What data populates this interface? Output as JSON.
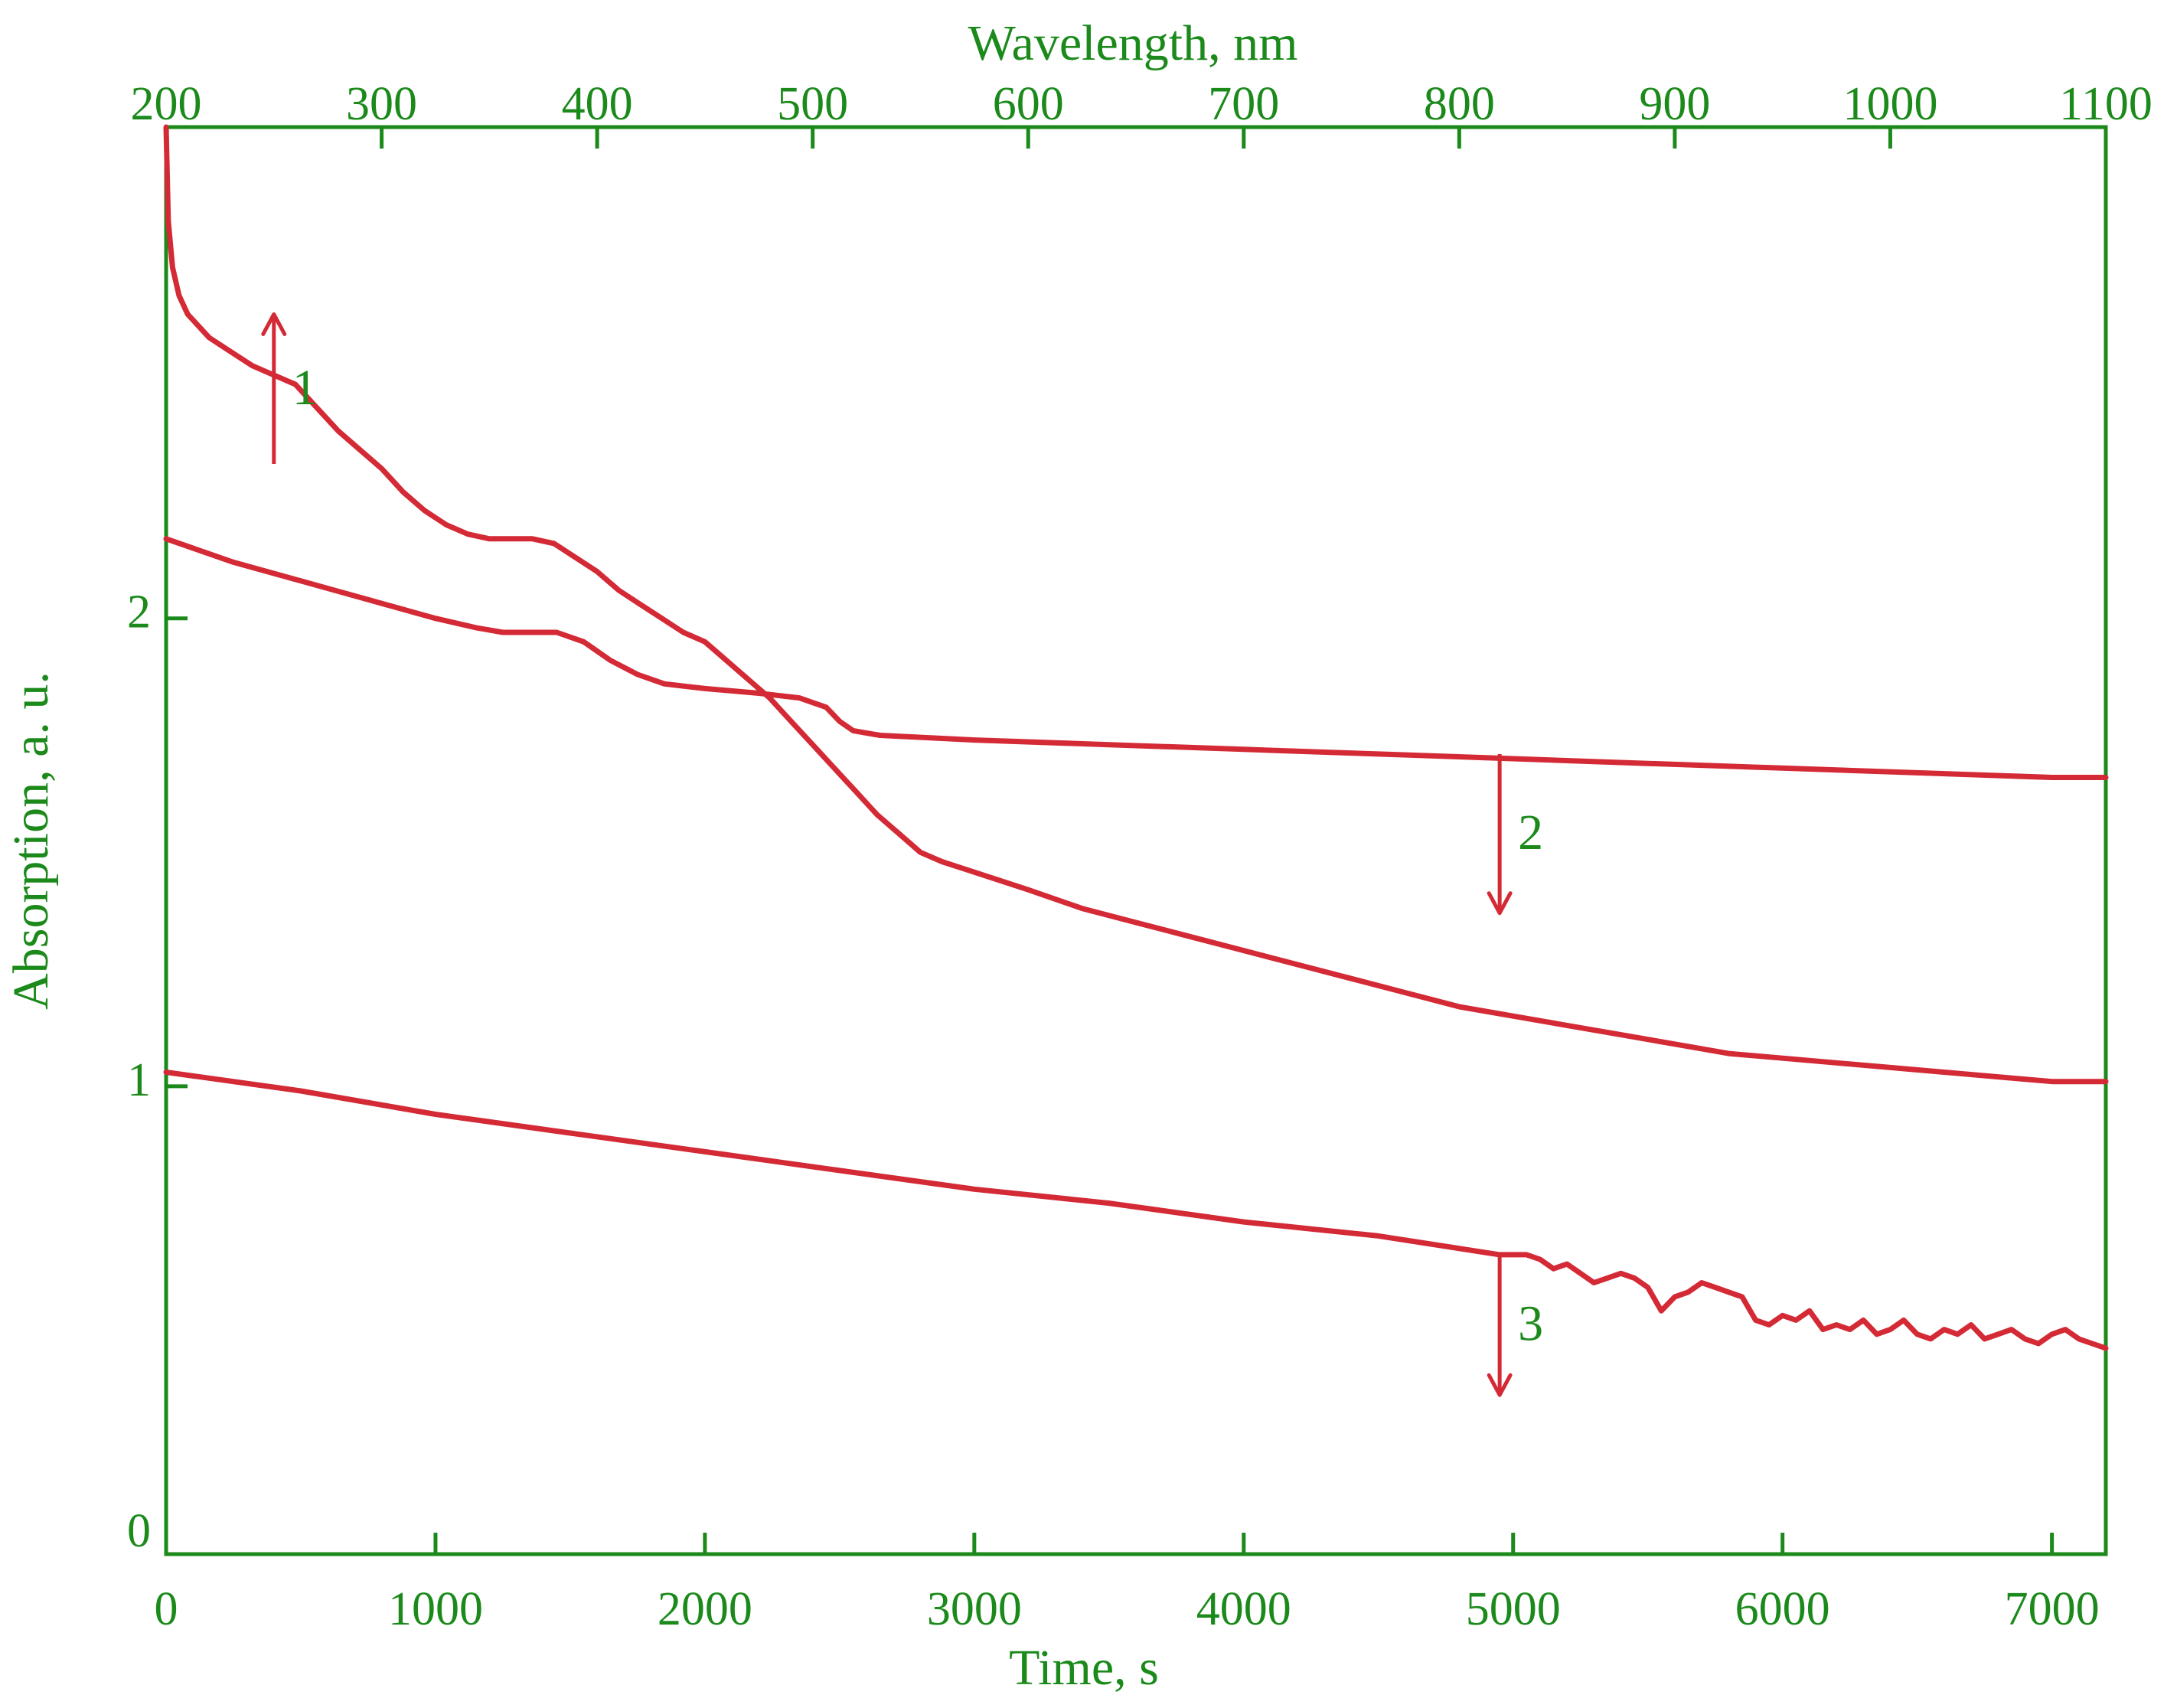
{
  "chart_data": {
    "type": "line",
    "x_bottom_axis": {
      "label": "Time, s",
      "range": [
        0,
        7200
      ],
      "ticks": [
        0,
        1000,
        2000,
        3000,
        4000,
        5000,
        6000,
        7000
      ]
    },
    "x_top_axis": {
      "label": "Wavelength, nm",
      "range": [
        200,
        1100
      ],
      "ticks": [
        200,
        300,
        400,
        500,
        600,
        700,
        800,
        900,
        1000,
        1100
      ]
    },
    "y_axis": {
      "label": "Absorption, a. u.",
      "range": [
        0,
        3.05
      ],
      "ticks": [
        0,
        1,
        2
      ]
    },
    "grid": false,
    "colors": {
      "axis": "#1b8a1b",
      "series": "#d42a36"
    },
    "series": [
      {
        "axis": "wavelength",
        "points": [
          [
            200,
            3.05
          ],
          [
            201,
            2.85
          ],
          [
            203,
            2.75
          ],
          [
            206,
            2.69
          ],
          [
            210,
            2.65
          ],
          [
            220,
            2.6
          ],
          [
            230,
            2.57
          ],
          [
            240,
            2.54
          ],
          [
            250,
            2.52
          ],
          [
            260,
            2.5
          ],
          [
            270,
            2.45
          ],
          [
            280,
            2.4
          ],
          [
            290,
            2.36
          ],
          [
            300,
            2.32
          ],
          [
            310,
            2.27
          ],
          [
            320,
            2.23
          ],
          [
            330,
            2.2
          ],
          [
            340,
            2.18
          ],
          [
            350,
            2.17
          ],
          [
            360,
            2.17
          ],
          [
            370,
            2.17
          ],
          [
            380,
            2.16
          ],
          [
            390,
            2.13
          ],
          [
            400,
            2.1
          ],
          [
            410,
            2.06
          ],
          [
            420,
            2.03
          ],
          [
            430,
            2.0
          ],
          [
            440,
            1.97
          ],
          [
            450,
            1.95
          ],
          [
            460,
            1.91
          ],
          [
            470,
            1.87
          ],
          [
            480,
            1.83
          ],
          [
            490,
            1.78
          ],
          [
            500,
            1.73
          ],
          [
            510,
            1.68
          ],
          [
            520,
            1.63
          ],
          [
            530,
            1.58
          ],
          [
            540,
            1.54
          ],
          [
            550,
            1.5
          ],
          [
            560,
            1.48
          ],
          [
            580,
            1.45
          ],
          [
            600,
            1.42
          ],
          [
            625,
            1.38
          ],
          [
            650,
            1.35
          ],
          [
            675,
            1.32
          ],
          [
            700,
            1.29
          ],
          [
            725,
            1.26
          ],
          [
            750,
            1.23
          ],
          [
            775,
            1.2
          ],
          [
            800,
            1.17
          ],
          [
            825,
            1.15
          ],
          [
            850,
            1.13
          ],
          [
            875,
            1.11
          ],
          [
            900,
            1.09
          ],
          [
            925,
            1.07
          ],
          [
            950,
            1.06
          ],
          [
            975,
            1.05
          ],
          [
            1000,
            1.04
          ],
          [
            1025,
            1.03
          ],
          [
            1050,
            1.02
          ],
          [
            1075,
            1.01
          ],
          [
            1100,
            1.01
          ]
        ]
      },
      {
        "axis": "time",
        "points": [
          [
            0,
            2.17
          ],
          [
            250,
            2.12
          ],
          [
            500,
            2.08
          ],
          [
            750,
            2.04
          ],
          [
            1000,
            2.0
          ],
          [
            1150,
            1.98
          ],
          [
            1250,
            1.97
          ],
          [
            1350,
            1.97
          ],
          [
            1450,
            1.97
          ],
          [
            1550,
            1.95
          ],
          [
            1650,
            1.91
          ],
          [
            1750,
            1.88
          ],
          [
            1850,
            1.86
          ],
          [
            2000,
            1.85
          ],
          [
            2200,
            1.84
          ],
          [
            2350,
            1.83
          ],
          [
            2450,
            1.81
          ],
          [
            2500,
            1.78
          ],
          [
            2550,
            1.76
          ],
          [
            2650,
            1.75
          ],
          [
            3000,
            1.74
          ],
          [
            3500,
            1.73
          ],
          [
            4000,
            1.72
          ],
          [
            4500,
            1.71
          ],
          [
            5000,
            1.7
          ],
          [
            5500,
            1.69
          ],
          [
            6000,
            1.68
          ],
          [
            6500,
            1.67
          ],
          [
            7000,
            1.66
          ],
          [
            7200,
            1.66
          ]
        ]
      },
      {
        "axis": "time",
        "points": [
          [
            0,
            1.03
          ],
          [
            500,
            0.99
          ],
          [
            1000,
            0.94
          ],
          [
            1500,
            0.9
          ],
          [
            2000,
            0.86
          ],
          [
            2500,
            0.82
          ],
          [
            3000,
            0.78
          ],
          [
            3500,
            0.75
          ],
          [
            4000,
            0.71
          ],
          [
            4500,
            0.68
          ],
          [
            4950,
            0.64
          ],
          [
            5050,
            0.64
          ],
          [
            5100,
            0.63
          ],
          [
            5150,
            0.61
          ],
          [
            5200,
            0.62
          ],
          [
            5250,
            0.6
          ],
          [
            5300,
            0.58
          ],
          [
            5350,
            0.59
          ],
          [
            5400,
            0.6
          ],
          [
            5450,
            0.59
          ],
          [
            5500,
            0.57
          ],
          [
            5550,
            0.52
          ],
          [
            5600,
            0.55
          ],
          [
            5650,
            0.56
          ],
          [
            5700,
            0.58
          ],
          [
            5750,
            0.57
          ],
          [
            5800,
            0.56
          ],
          [
            5850,
            0.55
          ],
          [
            5900,
            0.5
          ],
          [
            5950,
            0.49
          ],
          [
            6000,
            0.51
          ],
          [
            6050,
            0.5
          ],
          [
            6100,
            0.52
          ],
          [
            6150,
            0.48
          ],
          [
            6200,
            0.49
          ],
          [
            6250,
            0.48
          ],
          [
            6300,
            0.5
          ],
          [
            6350,
            0.47
          ],
          [
            6400,
            0.48
          ],
          [
            6450,
            0.5
          ],
          [
            6500,
            0.47
          ],
          [
            6550,
            0.46
          ],
          [
            6600,
            0.48
          ],
          [
            6650,
            0.47
          ],
          [
            6700,
            0.49
          ],
          [
            6750,
            0.46
          ],
          [
            6800,
            0.47
          ],
          [
            6850,
            0.48
          ],
          [
            6900,
            0.46
          ],
          [
            6950,
            0.45
          ],
          [
            7000,
            0.47
          ],
          [
            7050,
            0.48
          ],
          [
            7100,
            0.46
          ],
          [
            7150,
            0.45
          ],
          [
            7200,
            0.44
          ]
        ]
      }
    ],
    "annotations": [
      {
        "label": "1",
        "arrow": "up",
        "x_wavelength": 250,
        "y_from": 2.33,
        "y_to": 2.65
      },
      {
        "label": "2",
        "arrow": "down",
        "x_time": 4950,
        "y_from": 1.71,
        "y_to": 1.37
      },
      {
        "label": "3",
        "arrow": "down",
        "x_time": 4950,
        "y_from": 0.64,
        "y_to": 0.34
      }
    ]
  }
}
